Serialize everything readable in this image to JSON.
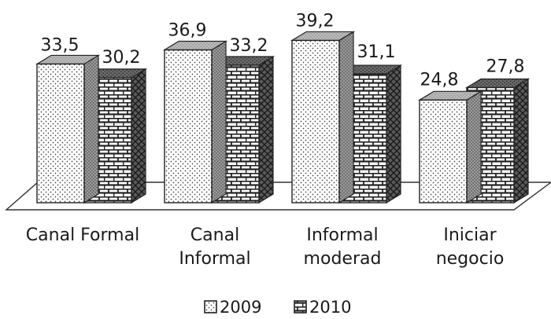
{
  "chart_data": {
    "type": "bar",
    "title": "",
    "xlabel": "",
    "ylabel": "",
    "ylim": [
      0,
      40
    ],
    "grid": false,
    "legend_position": "bottom",
    "categories": [
      [
        "Canal Formal"
      ],
      [
        "Canal",
        "Informal"
      ],
      [
        "Informal",
        "moderad"
      ],
      [
        "Iniciar",
        "negocio"
      ]
    ],
    "series": [
      {
        "name": "2009",
        "values": [
          33.5,
          36.9,
          39.2,
          24.8
        ],
        "labels": [
          "33,5",
          "36,9",
          "39,2",
          "24,8"
        ],
        "pattern": "dots"
      },
      {
        "name": "2010",
        "values": [
          30.2,
          33.2,
          31.1,
          27.8
        ],
        "labels": [
          "30,2",
          "33,2",
          "31,1",
          "27,8"
        ],
        "pattern": "bricks"
      }
    ]
  }
}
